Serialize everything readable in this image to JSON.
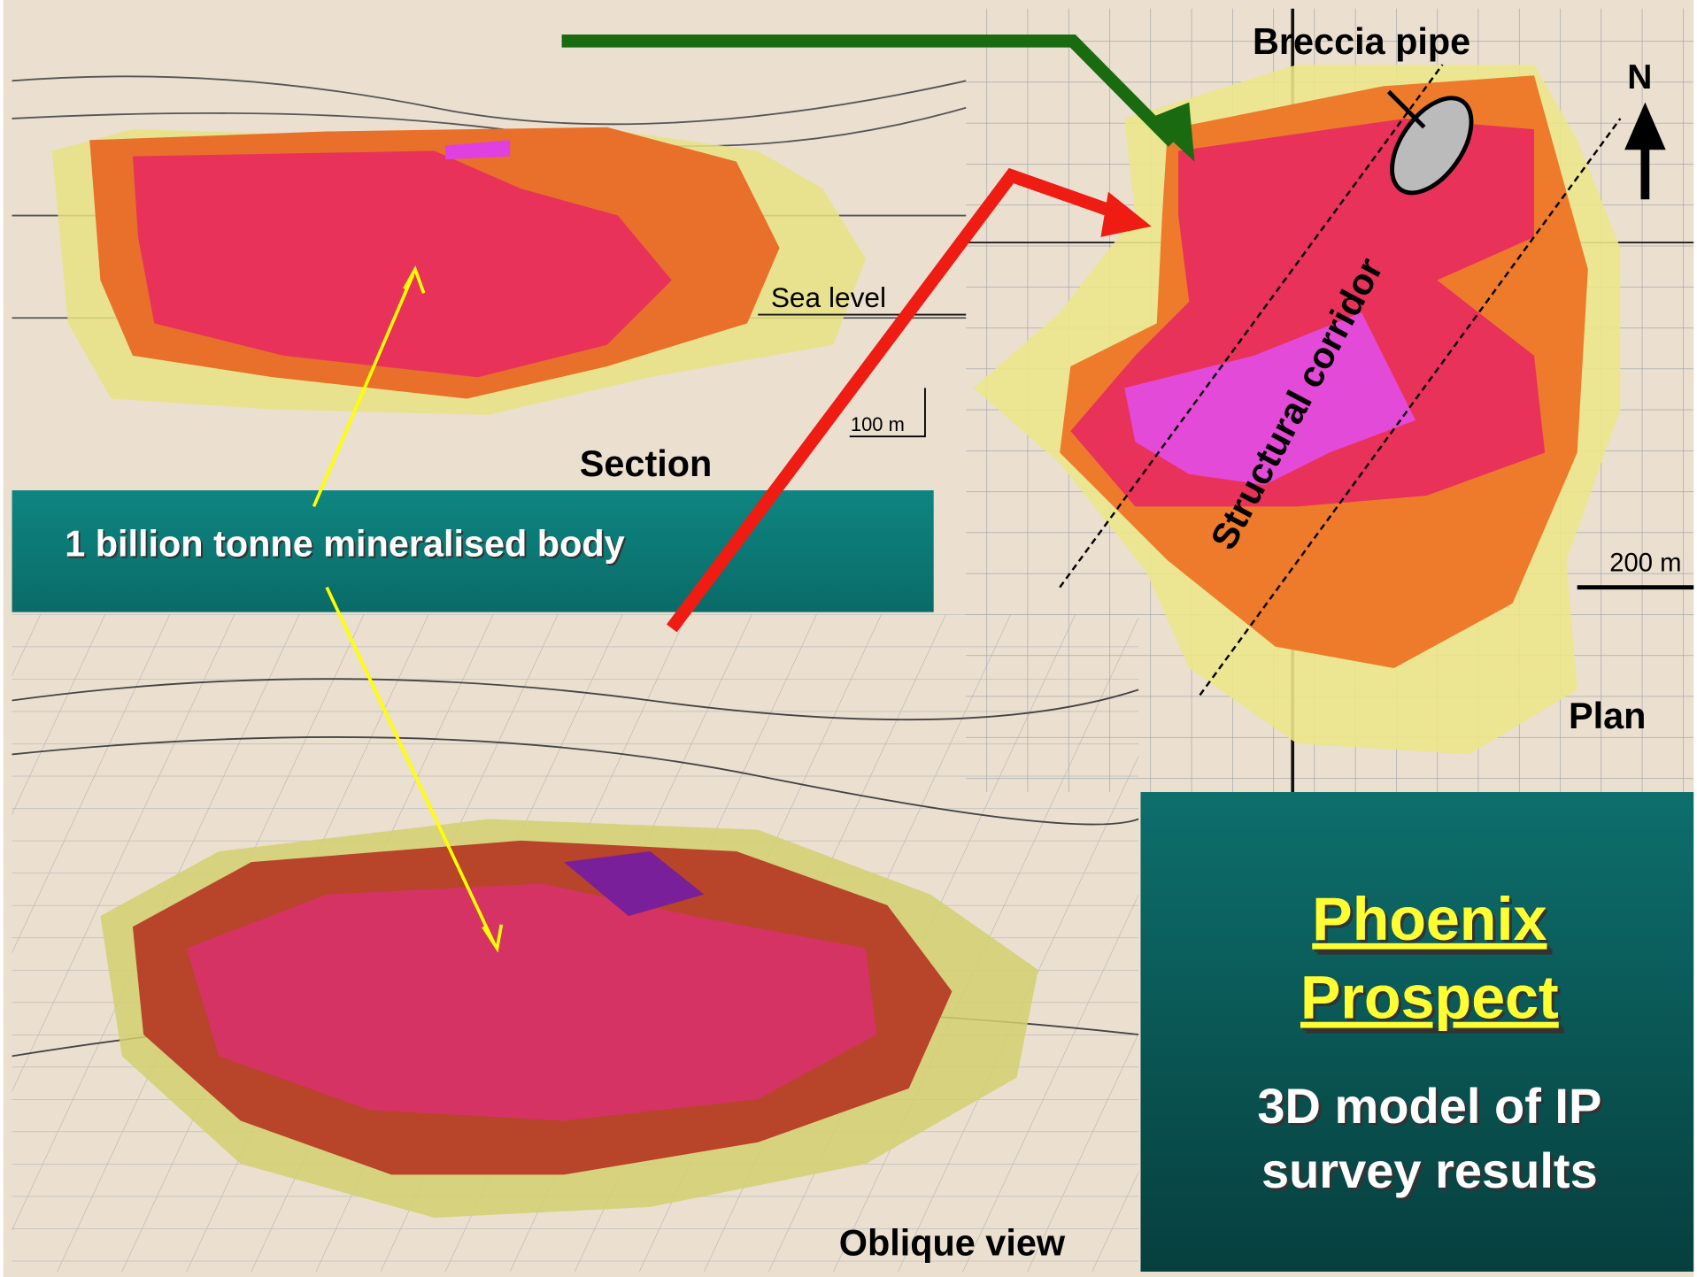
{
  "section_view": {
    "label": "Section",
    "sea_level": "Sea level",
    "scale": "100 m"
  },
  "plan_view": {
    "label": "Plan",
    "breccia": "Breccia pipe",
    "corridor": "Structural corridor",
    "north": "N",
    "scale": "200 m"
  },
  "oblique_view": {
    "label": "Oblique view"
  },
  "callout": "1 billion tonne mineralised body",
  "title_box": {
    "title_line1": "Phoenix",
    "title_line2": "Prospect",
    "subtitle_line1": "3D model of IP",
    "subtitle_line2": "survey results"
  }
}
